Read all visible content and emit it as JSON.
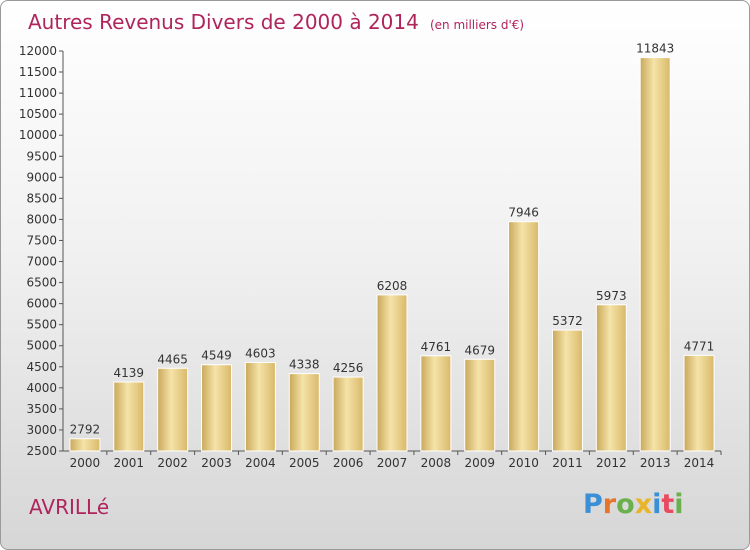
{
  "title": "Autres Revenus Divers de 2000 à 2014",
  "unit_note": "(en milliers d'€)",
  "city": "AVRILLé",
  "logo": {
    "letters": [
      "P",
      "r",
      "o",
      "x",
      "i",
      "t",
      "i"
    ],
    "colors": [
      "#3a8fd6",
      "#e8732a",
      "#6ab04c",
      "#e8b42a",
      "#3a8fd6",
      "#e84a5f",
      "#6ab04c"
    ]
  },
  "colors": {
    "title": "#b0245c",
    "bar": "#e9cd84",
    "bar_light": "#f5e3a8",
    "bar_dark": "#c9a85a"
  },
  "chart_data": {
    "type": "bar",
    "categories": [
      "2000",
      "2001",
      "2002",
      "2003",
      "2004",
      "2005",
      "2006",
      "2007",
      "2008",
      "2009",
      "2010",
      "2011",
      "2012",
      "2013",
      "2014"
    ],
    "values": [
      2792,
      4139,
      4465,
      4549,
      4603,
      4338,
      4256,
      6208,
      4761,
      4679,
      7946,
      5372,
      5973,
      11843,
      4771
    ],
    "title": "Autres Revenus Divers de 2000 à 2014",
    "ylim": [
      2500,
      12000
    ],
    "yticks": [
      2500,
      3000,
      3500,
      4000,
      4500,
      5000,
      5500,
      6000,
      6500,
      7000,
      7500,
      8000,
      8500,
      9000,
      9500,
      10000,
      10500,
      11000,
      11500,
      12000
    ],
    "grid": false,
    "legend": "none"
  }
}
